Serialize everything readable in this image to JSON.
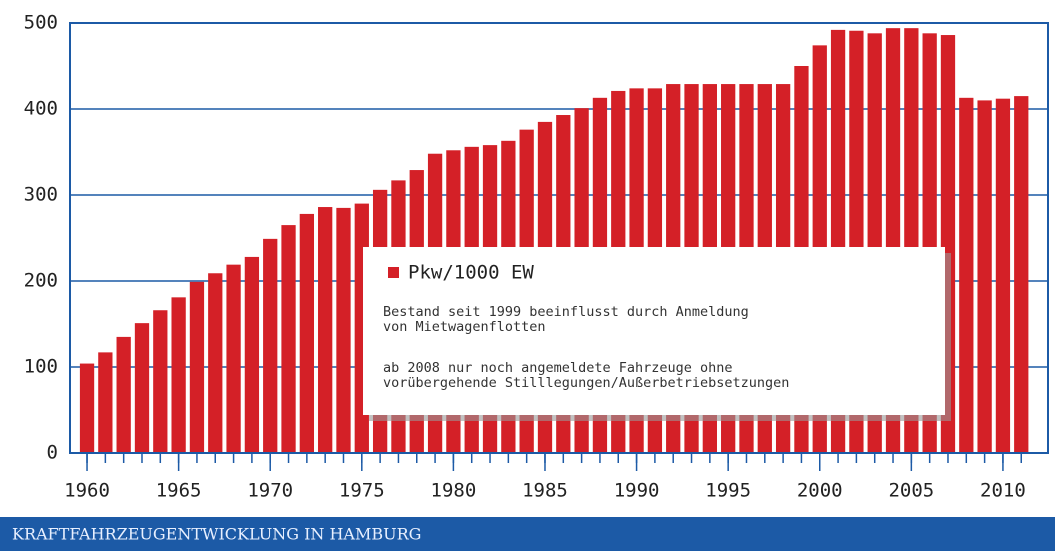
{
  "chart_data": {
    "type": "bar",
    "title": "KRAFTFAHRZEUGENTWICKLUNG IN HAMBURG",
    "x": [
      1960,
      1961,
      1962,
      1963,
      1964,
      1965,
      1966,
      1967,
      1968,
      1969,
      1970,
      1971,
      1972,
      1973,
      1974,
      1975,
      1976,
      1977,
      1978,
      1979,
      1980,
      1981,
      1982,
      1983,
      1984,
      1985,
      1986,
      1987,
      1988,
      1989,
      1990,
      1991,
      1992,
      1993,
      1994,
      1995,
      1996,
      1997,
      1998,
      1999,
      2000,
      2001,
      2002,
      2003,
      2004,
      2005,
      2006,
      2007,
      2008,
      2009,
      2010,
      2011
    ],
    "series": [
      {
        "name": "Pkw/1000 EW",
        "color": "#d42027",
        "values": [
          104,
          117,
          135,
          151,
          166,
          181,
          199,
          209,
          219,
          228,
          249,
          265,
          278,
          286,
          285,
          290,
          306,
          317,
          329,
          348,
          352,
          356,
          358,
          363,
          376,
          385,
          393,
          401,
          413,
          421,
          424,
          424,
          429,
          429,
          429,
          429,
          429,
          429,
          429,
          450,
          474,
          492,
          491,
          488,
          494,
          494,
          488,
          486,
          413,
          410,
          412,
          415
        ]
      }
    ],
    "annotations": [
      [
        "Bestand seit 1999 beeinflusst durch Anmeldung",
        "von Mietwagenflotten"
      ],
      [
        "ab 2008 nur noch angemeldete Fahrzeuge ohne",
        "vorübergehende Stilllegungen/Außerbetriebsetzungen"
      ]
    ],
    "xlim": [
      1959.07,
      2012.46
    ],
    "xticks": [
      1960,
      1965,
      1970,
      1975,
      1980,
      1985,
      1990,
      1995,
      2000,
      2005,
      2010
    ],
    "ylim": [
      0,
      500
    ],
    "yticks": [
      0,
      100,
      200,
      300,
      400,
      500
    ],
    "grid": true
  }
}
